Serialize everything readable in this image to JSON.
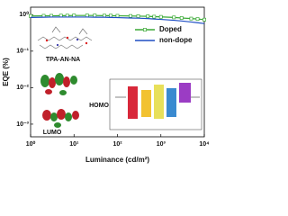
{
  "chart_data": {
    "type": "line",
    "xlabel": "Luminance (cd/m²)",
    "ylabel": "EQE (%)",
    "x": [
      1,
      2,
      3,
      5,
      7,
      10,
      20,
      30,
      50,
      70,
      100,
      200,
      300,
      500,
      700,
      1000,
      2000,
      3000,
      5000,
      7000,
      10000
    ],
    "series": [
      {
        "name": "Doped",
        "color": "#3aa935",
        "marker": "square",
        "values": [
          0.92,
          0.93,
          0.93,
          0.94,
          0.94,
          0.95,
          0.95,
          0.95,
          0.94,
          0.94,
          0.93,
          0.92,
          0.91,
          0.9,
          0.88,
          0.87,
          0.84,
          0.81,
          0.78,
          0.76,
          0.73
        ]
      },
      {
        "name": "non-dope",
        "color": "#1f4fc4",
        "marker": "none",
        "values": [
          0.84,
          0.85,
          0.86,
          0.86,
          0.86,
          0.86,
          0.86,
          0.85,
          0.85,
          0.84,
          0.83,
          0.81,
          0.8,
          0.78,
          0.76,
          0.74,
          0.7,
          0.67,
          0.63,
          0.6,
          0.57
        ]
      }
    ],
    "xscale": "log",
    "yscale": "log",
    "xlim": [
      1,
      10000
    ],
    "xticks": [
      {
        "value": 1,
        "label": "10⁰"
      },
      {
        "value": 10,
        "label": "10¹"
      },
      {
        "value": 100,
        "label": "10²"
      },
      {
        "value": 1000,
        "label": "10³"
      },
      {
        "value": 10000,
        "label": "10⁴"
      }
    ],
    "ylim": [
      0.00045,
      1.6
    ],
    "yticks": [
      {
        "value": 0.001,
        "label": "10⁻³"
      },
      {
        "value": 0.01,
        "label": "10⁻²"
      },
      {
        "value": 0.1,
        "label": "10⁻¹"
      },
      {
        "value": 1,
        "label": "10⁰"
      }
    ],
    "legend": "upper right",
    "annotations": [
      "TPA-AN-NA",
      "HOMO",
      "LUMO"
    ]
  }
}
